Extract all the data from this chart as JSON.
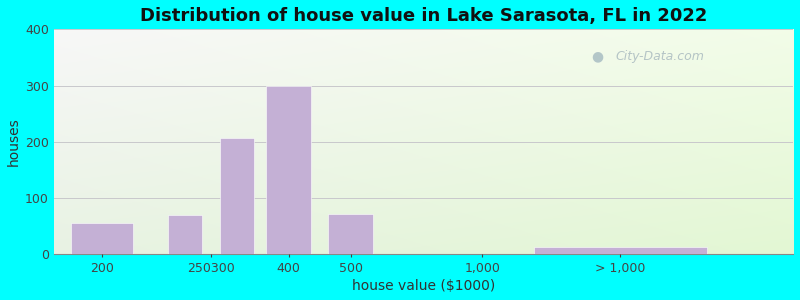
{
  "title": "Distribution of house value in Lake Sarasota, FL in 2022",
  "xlabel": "house value ($1000)",
  "ylabel": "houses",
  "bar_color": "#c4b0d5",
  "bar_edgecolor": "#ffffff",
  "background_outer": "#00ffff",
  "ylim": [
    0,
    400
  ],
  "yticks": [
    0,
    100,
    200,
    300,
    400
  ],
  "grid_color": "#c8c8cc",
  "values": [
    55,
    70,
    207,
    300,
    72,
    13
  ],
  "bar_positions": [
    1.0,
    2.2,
    2.95,
    3.7,
    4.6,
    8.5
  ],
  "bar_widths": [
    0.9,
    0.5,
    0.5,
    0.65,
    0.65,
    2.5
  ],
  "xtick_positions": [
    1.0,
    2.58,
    3.7,
    4.6,
    6.5,
    8.5
  ],
  "xtick_labels": [
    "200",
    "250300",
    "400",
    "500",
    "1,000",
    "> 1,000"
  ],
  "xlim": [
    0.3,
    11.0
  ],
  "title_fontsize": 13,
  "axis_label_fontsize": 10,
  "tick_fontsize": 9,
  "watermark_text": "City-Data.com"
}
